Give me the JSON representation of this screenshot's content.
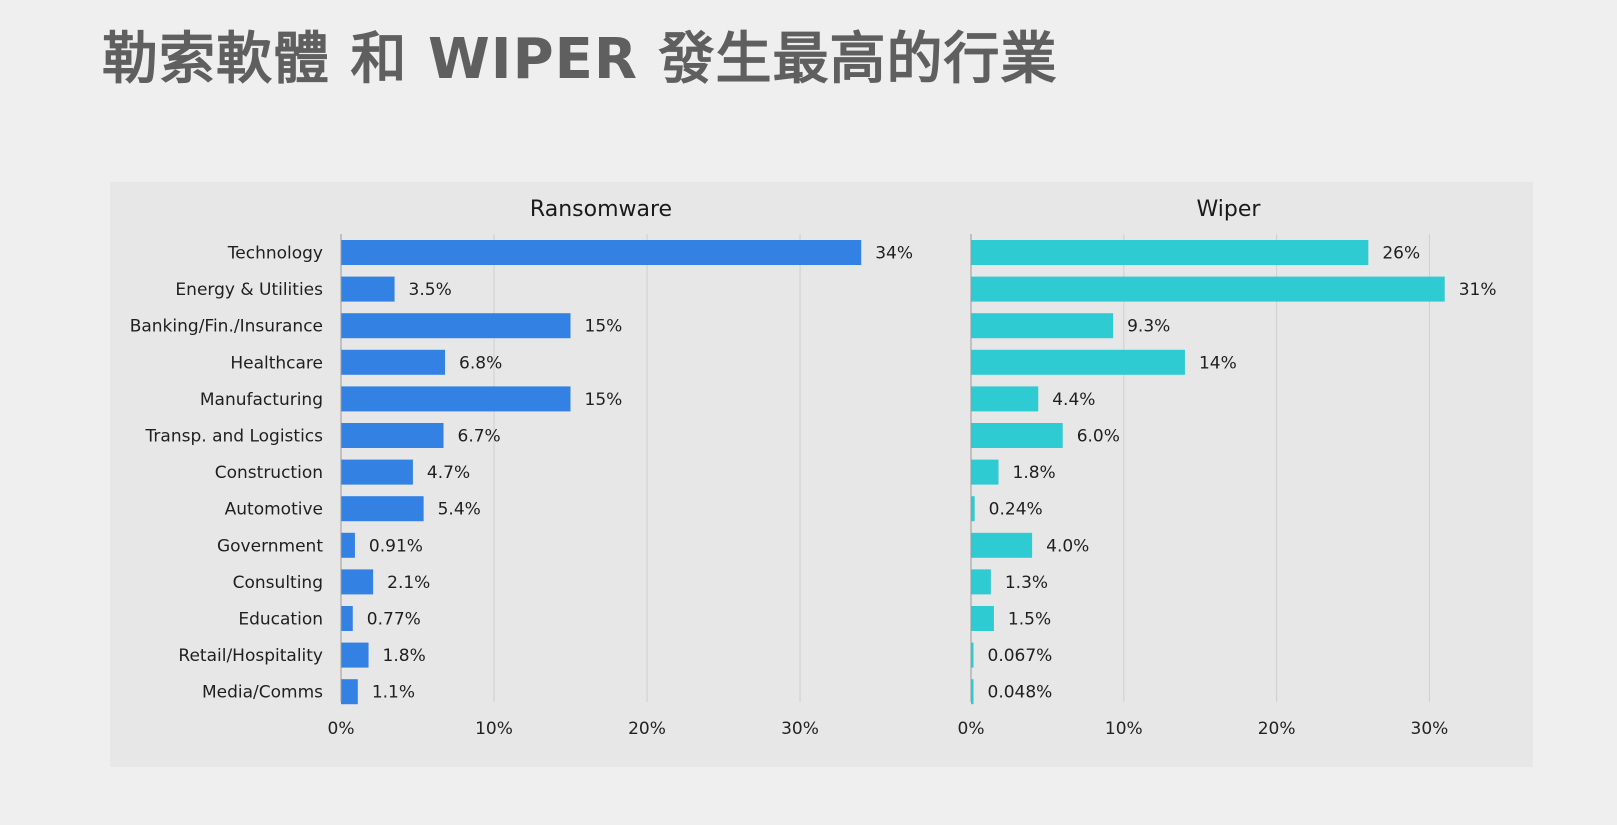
{
  "page": {
    "title": "勒索軟體 和 WIPER 發生最高的行業"
  },
  "chart_data": [
    {
      "type": "bar",
      "orientation": "horizontal",
      "title": "Ransomware",
      "categories": [
        "Technology",
        "Energy & Utilities",
        "Banking/Fin./Insurance",
        "Healthcare",
        "Manufacturing",
        "Transp. and Logistics",
        "Construction",
        "Automotive",
        "Government",
        "Consulting",
        "Education",
        "Retail/Hospitality",
        "Media/Comms"
      ],
      "values": [
        34,
        3.5,
        15,
        6.8,
        15,
        6.7,
        4.7,
        5.4,
        0.91,
        2.1,
        0.77,
        1.8,
        1.1
      ],
      "value_labels": [
        "34%",
        "3.5%",
        "15%",
        "6.8%",
        "15%",
        "6.7%",
        "4.7%",
        "5.4%",
        "0.91%",
        "2.1%",
        "0.77%",
        "1.8%",
        "1.1%"
      ],
      "xticks": [
        0,
        10,
        20,
        30
      ],
      "xtick_labels": [
        "0%",
        "10%",
        "20%",
        "30%"
      ],
      "xlim": [
        0,
        36.6
      ],
      "grid": true,
      "color": "#3381e3"
    },
    {
      "type": "bar",
      "orientation": "horizontal",
      "title": "Wiper",
      "categories": [
        "Technology",
        "Energy & Utilities",
        "Banking/Fin./Insurance",
        "Healthcare",
        "Manufacturing",
        "Transp. and Logistics",
        "Construction",
        "Automotive",
        "Government",
        "Consulting",
        "Education",
        "Retail/Hospitality",
        "Media/Comms"
      ],
      "values": [
        26,
        31,
        9.3,
        14,
        4.4,
        6.0,
        1.8,
        0.24,
        4.0,
        1.3,
        1.5,
        0.067,
        0.048
      ],
      "value_labels": [
        "26%",
        "31%",
        "9.3%",
        "14%",
        "4.4%",
        "6.0%",
        "1.8%",
        "0.24%",
        "4.0%",
        "1.3%",
        "1.5%",
        "0.067%",
        "0.048%"
      ],
      "xticks": [
        0,
        10,
        20,
        30
      ],
      "xtick_labels": [
        "0%",
        "10%",
        "20%",
        "30%"
      ],
      "xlim": [
        0,
        33.7
      ],
      "grid": true,
      "color": "#2ecbd3"
    }
  ]
}
